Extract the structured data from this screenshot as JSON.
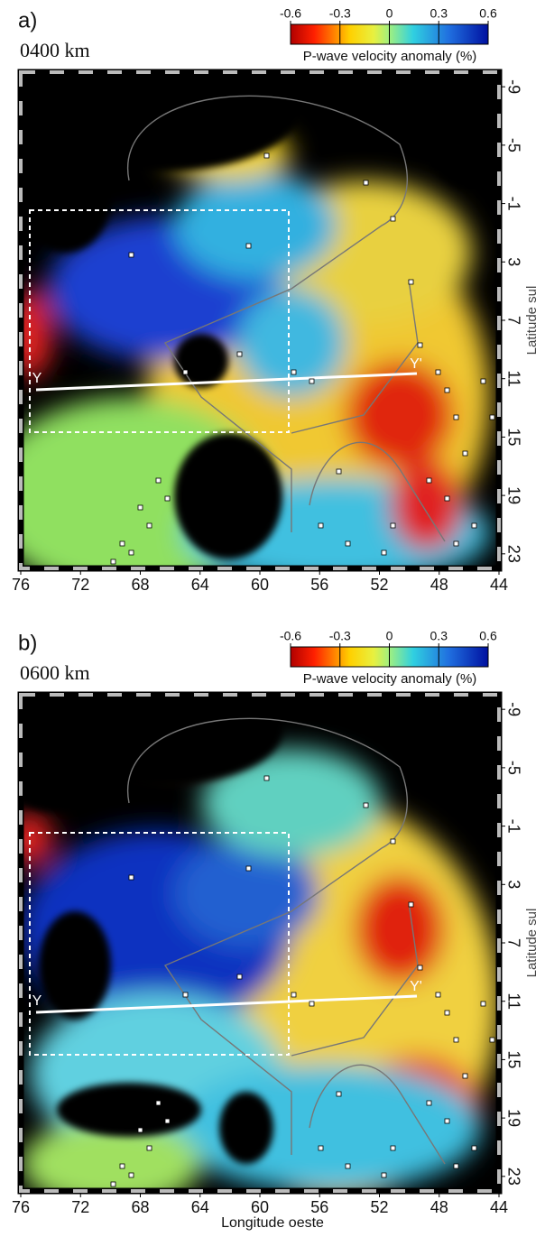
{
  "panels": [
    {
      "label": "a)",
      "depth": "0400 km",
      "colorbar": {
        "label": "P-wave velocity anomaly (%)",
        "lim": [
          -0.6,
          0.6
        ],
        "ticks": [
          -0.6,
          -0.3,
          0,
          0.3,
          0.6
        ]
      },
      "xlim": [
        76,
        44
      ],
      "xticks": [
        76,
        72,
        68,
        64,
        60,
        56,
        52,
        48,
        44
      ],
      "ylim": [
        -10,
        24
      ],
      "yticks": [
        -9,
        -5,
        -1,
        3,
        7,
        11,
        15,
        19,
        23
      ],
      "ylabel": "Latitude sul",
      "profile_labels": [
        "Y",
        "Y'"
      ]
    },
    {
      "label": "b)",
      "depth": "0600 km",
      "colorbar": {
        "label": "P-wave velocity anomaly (%)",
        "lim": [
          -0.6,
          0.6
        ],
        "ticks": [
          -0.6,
          -0.3,
          0,
          0.3,
          0.6
        ]
      },
      "xlim": [
        76,
        44
      ],
      "xticks": [
        76,
        72,
        68,
        64,
        60,
        56,
        52,
        48,
        44
      ],
      "ylim": [
        -10,
        24
      ],
      "yticks": [
        -9,
        -5,
        -1,
        3,
        7,
        11,
        15,
        19,
        23
      ],
      "ylabel": "Latitude sul",
      "profile_labels": [
        "Y",
        "Y'"
      ]
    }
  ],
  "xlabel": "Longitude oeste"
}
